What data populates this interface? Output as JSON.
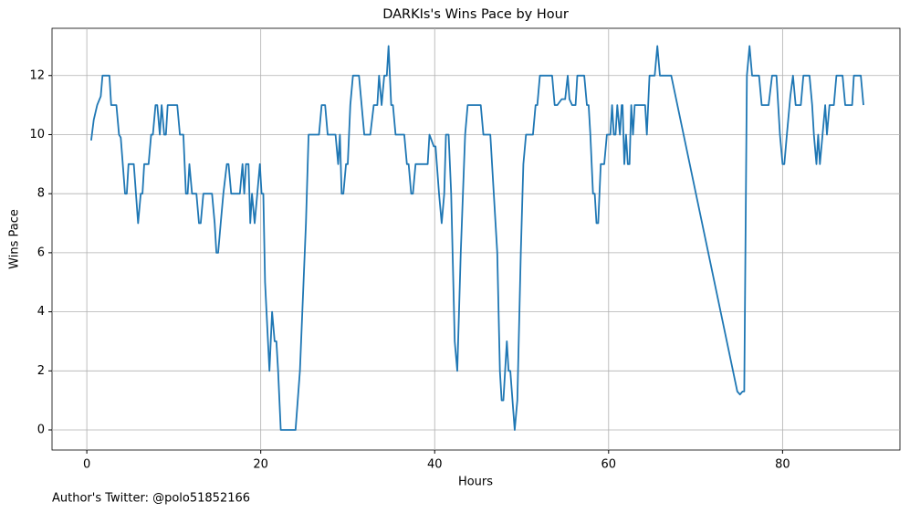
{
  "chart_data": {
    "type": "line",
    "title": "DARKIs's Wins Pace by Hour",
    "x_label": "Hours",
    "y_label": "Wins Pace",
    "footnote": "Author's Twitter: @polo51852166",
    "xlim": [
      -4,
      93.5
    ],
    "ylim": [
      -0.68,
      13.6
    ],
    "xticks": [
      0,
      20,
      40,
      60,
      80
    ],
    "yticks": [
      0,
      2,
      4,
      6,
      8,
      10,
      12
    ],
    "grid": true,
    "series": [
      {
        "name": "Wins Pace",
        "color": "#1f77b4",
        "x": [
          0.5,
          0.8,
          1.2,
          1.6,
          1.8,
          2.6,
          2.8,
          3.4,
          3.7,
          3.9,
          4.4,
          4.6,
          4.8,
          5.4,
          5.9,
          6.2,
          6.4,
          6.6,
          7.1,
          7.4,
          7.6,
          7.9,
          8.1,
          8.4,
          8.6,
          8.9,
          9.1,
          9.3,
          10.4,
          10.7,
          11.1,
          11.4,
          11.6,
          11.8,
          12.1,
          12.6,
          12.9,
          13.1,
          13.4,
          14.4,
          14.7,
          14.9,
          15.1,
          15.4,
          15.7,
          16.1,
          16.3,
          16.6,
          17.6,
          17.9,
          18.1,
          18.3,
          18.6,
          18.8,
          19.0,
          19.3,
          19.6,
          19.9,
          20.1,
          20.3,
          20.5,
          21.0,
          21.3,
          21.6,
          21.8,
          22.0,
          22.3,
          24.0,
          24.5,
          25.2,
          25.5,
          26.7,
          27.0,
          27.4,
          27.7,
          28.6,
          28.9,
          29.1,
          29.3,
          29.5,
          29.8,
          30.0,
          30.3,
          30.6,
          31.3,
          31.6,
          31.9,
          32.6,
          33.0,
          33.4,
          33.6,
          33.9,
          34.2,
          34.5,
          34.7,
          35.0,
          35.2,
          35.5,
          36.5,
          36.8,
          37.0,
          37.3,
          37.5,
          37.8,
          39.2,
          39.4,
          39.9,
          40.1,
          40.5,
          40.8,
          41.1,
          41.3,
          41.6,
          41.9,
          42.3,
          42.6,
          43.0,
          43.5,
          43.8,
          45.3,
          45.6,
          46.4,
          46.8,
          47.2,
          47.5,
          47.7,
          47.9,
          48.1,
          48.3,
          48.5,
          48.7,
          49.2,
          49.5,
          49.9,
          50.2,
          50.5,
          51.3,
          51.6,
          51.8,
          52.1,
          53.5,
          53.8,
          54.1,
          54.6,
          55.0,
          55.3,
          55.5,
          55.8,
          56.2,
          56.4,
          57.2,
          57.5,
          57.7,
          57.9,
          58.2,
          58.4,
          58.6,
          58.8,
          59.1,
          59.5,
          59.8,
          60.2,
          60.4,
          60.6,
          60.8,
          61.0,
          61.3,
          61.5,
          61.6,
          61.8,
          62.0,
          62.2,
          62.4,
          62.6,
          62.8,
          63.0,
          64.2,
          64.4,
          64.7,
          65.3,
          65.6,
          65.9,
          66.6,
          67.2,
          74.8,
          75.1,
          75.4,
          75.6,
          75.9,
          76.2,
          76.5,
          77.3,
          77.6,
          78.4,
          78.8,
          79.3,
          79.7,
          80.0,
          80.2,
          80.5,
          80.9,
          81.2,
          81.5,
          82.1,
          82.4,
          83.1,
          83.4,
          83.6,
          83.9,
          84.1,
          84.3,
          84.6,
          84.9,
          85.1,
          85.4,
          85.9,
          86.2,
          86.9,
          87.2,
          88.0,
          88.2,
          89.0,
          89.3
        ],
        "values": [
          9.8,
          10.5,
          11,
          11.3,
          12,
          12,
          11,
          11,
          10,
          9.9,
          8,
          8,
          9,
          9,
          7,
          8,
          8,
          9,
          9,
          10,
          10,
          11,
          11,
          10,
          11,
          10,
          10,
          11,
          11,
          10,
          10,
          8,
          8,
          9,
          8,
          8,
          7,
          7,
          8,
          8,
          7,
          6,
          6,
          7,
          8,
          9,
          9,
          8,
          8,
          9,
          8,
          9,
          9,
          7,
          8,
          7,
          8,
          9,
          8,
          8,
          5,
          2,
          4,
          3,
          3,
          2,
          0,
          0,
          2,
          7,
          10,
          10,
          11,
          11,
          10,
          10,
          9,
          10,
          8,
          8,
          9,
          9,
          11,
          12,
          12,
          11,
          10,
          10,
          11,
          11,
          12,
          11,
          12,
          12,
          13,
          11,
          11,
          10,
          10,
          9,
          9,
          8,
          8,
          9,
          9,
          10,
          9.6,
          9.6,
          8,
          7,
          8,
          10,
          10,
          8,
          3,
          2,
          6,
          10,
          11,
          11,
          10,
          10,
          8,
          6,
          2,
          1,
          1,
          2,
          3,
          2,
          2,
          0,
          1,
          6,
          9,
          10,
          10,
          11,
          11,
          12,
          12,
          11,
          11,
          11.2,
          11.2,
          12,
          11.2,
          11,
          11,
          12,
          12,
          11,
          11,
          10,
          8,
          8,
          7,
          7,
          9,
          9,
          10,
          10,
          11,
          10,
          10,
          11,
          10,
          11,
          11,
          9,
          10,
          9,
          9,
          11,
          10,
          11,
          11,
          10,
          12,
          12,
          13,
          12,
          12,
          12,
          1.3,
          1.2,
          1.3,
          1.3,
          12,
          13,
          12,
          12,
          11,
          11,
          12,
          12,
          10,
          9,
          9,
          10,
          11.3,
          12,
          11,
          11,
          12,
          12,
          11,
          10,
          9,
          10,
          9,
          10,
          11,
          10,
          11,
          11,
          12,
          12,
          11,
          11,
          12,
          12,
          11
        ]
      }
    ]
  }
}
